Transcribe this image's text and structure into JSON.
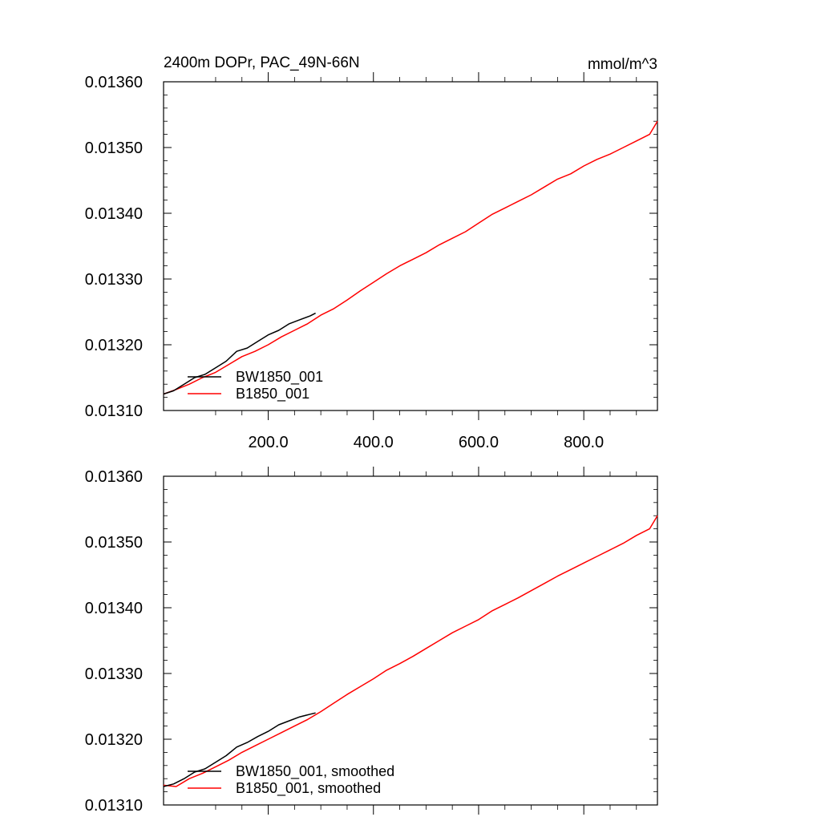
{
  "chart_data": [
    {
      "type": "line",
      "title": "2400m DOPr, PAC_49N-66N",
      "units": "mmol/m^3",
      "xlim": [
        1,
        940
      ],
      "ylim": [
        0.0131,
        0.0136
      ],
      "x_ticks": [
        200,
        400,
        600,
        800
      ],
      "x_tick_labels": [
        "200.0",
        "400.0",
        "600.0",
        "800.0"
      ],
      "y_ticks": [
        0.0131,
        0.0132,
        0.0133,
        0.0134,
        0.0135,
        0.0136
      ],
      "y_tick_labels": [
        "0.01310",
        "0.01320",
        "0.01330",
        "0.01340",
        "0.01350",
        "0.01360"
      ],
      "legend_position": "bottom-left",
      "series": [
        {
          "name": "BW1850_001",
          "color": "#000000",
          "x": [
            1,
            20,
            40,
            60,
            80,
            100,
            120,
            140,
            160,
            180,
            200,
            220,
            240,
            260,
            280,
            290
          ],
          "y": [
            0.013125,
            0.01313,
            0.01314,
            0.01315,
            0.013155,
            0.013165,
            0.013175,
            0.01319,
            0.013195,
            0.013205,
            0.013215,
            0.013222,
            0.013232,
            0.013238,
            0.013244,
            0.013248
          ]
        },
        {
          "name": "B1850_001",
          "color": "#ff0000",
          "x": [
            1,
            25,
            50,
            75,
            100,
            125,
            150,
            175,
            200,
            225,
            250,
            275,
            300,
            325,
            350,
            375,
            400,
            425,
            450,
            475,
            500,
            525,
            550,
            575,
            600,
            625,
            650,
            675,
            700,
            725,
            750,
            775,
            800,
            825,
            850,
            875,
            900,
            925,
            940
          ],
          "y": [
            0.013125,
            0.013132,
            0.01314,
            0.01315,
            0.013158,
            0.01317,
            0.013182,
            0.01319,
            0.0132,
            0.013212,
            0.013222,
            0.013232,
            0.013245,
            0.013255,
            0.013268,
            0.013282,
            0.013295,
            0.013308,
            0.01332,
            0.01333,
            0.01334,
            0.013352,
            0.013362,
            0.013372,
            0.013385,
            0.013398,
            0.013408,
            0.013418,
            0.013428,
            0.01344,
            0.013452,
            0.01346,
            0.013472,
            0.013482,
            0.01349,
            0.0135,
            0.01351,
            0.01352,
            0.01354
          ]
        }
      ]
    },
    {
      "type": "line",
      "title": "",
      "xlim": [
        1,
        940
      ],
      "ylim": [
        0.0131,
        0.0136
      ],
      "x_ticks": [
        200,
        400,
        600,
        800
      ],
      "x_tick_labels": [],
      "y_ticks": [
        0.0131,
        0.0132,
        0.0133,
        0.0134,
        0.0135,
        0.0136
      ],
      "y_tick_labels": [
        "0.01310",
        "0.01320",
        "0.01330",
        "0.01340",
        "0.01350",
        "0.01360"
      ],
      "legend_position": "bottom-left",
      "series": [
        {
          "name": "BW1850_001, smoothed",
          "color": "#000000",
          "x": [
            1,
            20,
            40,
            60,
            80,
            100,
            120,
            140,
            160,
            180,
            200,
            220,
            240,
            260,
            280,
            290
          ],
          "y": [
            0.013128,
            0.013132,
            0.01314,
            0.01315,
            0.013155,
            0.013165,
            0.013175,
            0.013188,
            0.013195,
            0.013204,
            0.013212,
            0.013222,
            0.013228,
            0.013234,
            0.013238,
            0.01324
          ]
        },
        {
          "name": "B1850_001, smoothed",
          "color": "#ff0000",
          "x": [
            1,
            25,
            50,
            75,
            100,
            125,
            150,
            175,
            200,
            225,
            250,
            275,
            300,
            325,
            350,
            375,
            400,
            425,
            450,
            475,
            500,
            525,
            550,
            575,
            600,
            625,
            650,
            675,
            700,
            725,
            750,
            775,
            800,
            825,
            850,
            875,
            900,
            925,
            940
          ],
          "y": [
            0.01313,
            0.013128,
            0.01314,
            0.013148,
            0.013158,
            0.013168,
            0.01318,
            0.01319,
            0.0132,
            0.01321,
            0.01322,
            0.01323,
            0.013242,
            0.013255,
            0.013268,
            0.01328,
            0.013292,
            0.013305,
            0.013315,
            0.013326,
            0.013338,
            0.01335,
            0.013362,
            0.013372,
            0.013382,
            0.013395,
            0.013405,
            0.013415,
            0.013426,
            0.013437,
            0.013448,
            0.013458,
            0.013468,
            0.013478,
            0.013488,
            0.013498,
            0.01351,
            0.01352,
            0.01354
          ]
        }
      ]
    }
  ]
}
